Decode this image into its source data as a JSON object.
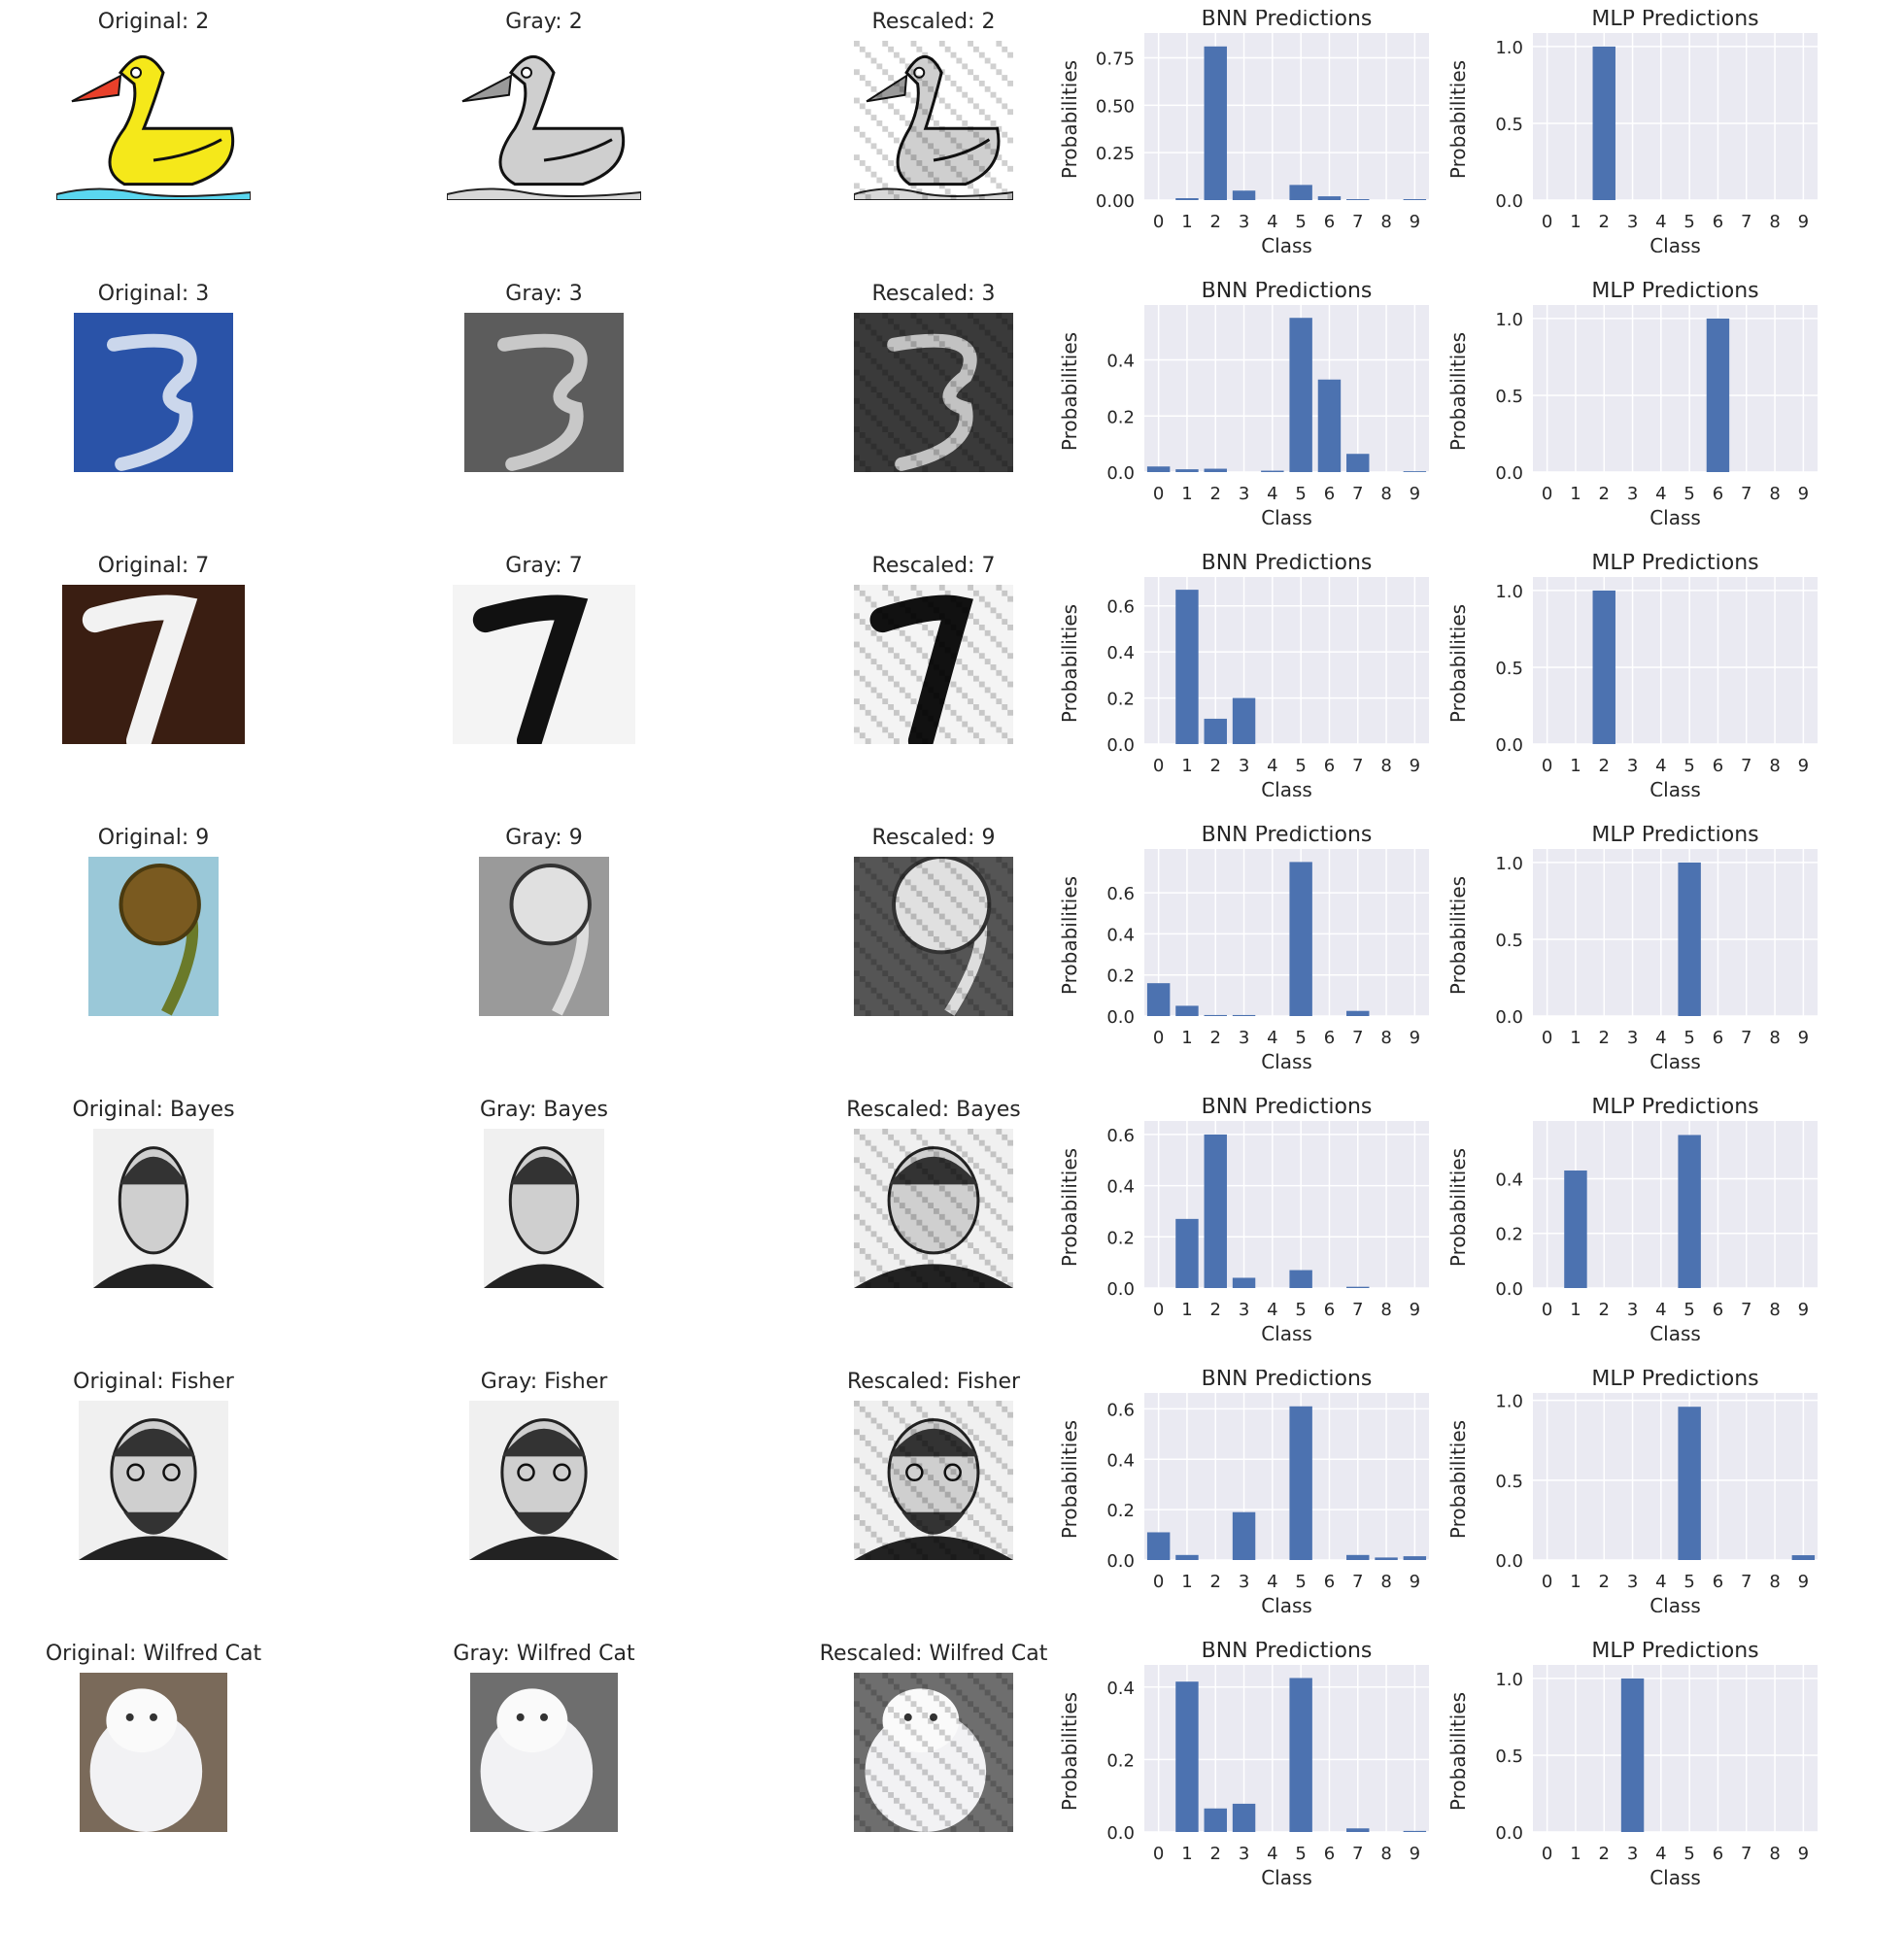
{
  "colors": {
    "bar": "#4c72b0",
    "axes_bg": "#eaeaf2",
    "grid": "#ffffff"
  },
  "labels": {
    "bnn_title": "BNN Predictions",
    "mlp_title": "MLP Predictions",
    "xlabel": "Class",
    "ylabel": "Probabilities"
  },
  "rows": [
    {
      "original": "Original: 2",
      "gray": "Gray: 2",
      "rescaled": "Rescaled: 2",
      "image": "yellow-duck-drawing"
    },
    {
      "original": "Original: 3",
      "gray": "Gray: 3",
      "rescaled": "Rescaled: 3",
      "image": "cloud-shaped-3"
    },
    {
      "original": "Original: 7",
      "gray": "Gray: 7",
      "rescaled": "Rescaled: 7",
      "image": "cow-fur-7"
    },
    {
      "original": "Original: 9",
      "gray": "Gray: 9",
      "rescaled": "Rescaled: 9",
      "image": "fern-fiddlehead"
    },
    {
      "original": "Original: Bayes",
      "gray": "Gray: Bayes",
      "rescaled": "Rescaled: Bayes",
      "image": "bayes-portrait"
    },
    {
      "original": "Original: Fisher",
      "gray": "Gray: Fisher",
      "rescaled": "Rescaled: Fisher",
      "image": "fisher-portrait"
    },
    {
      "original": "Original: Wilfred Cat",
      "gray": "Gray: Wilfred Cat",
      "rescaled": "Rescaled: Wilfred Cat",
      "image": "white-fluffy-cat"
    }
  ],
  "chart_data": [
    {
      "type": "bar",
      "title": "BNN Predictions",
      "xlabel": "Class",
      "ylabel": "Probabilities",
      "categories": [
        "0",
        "1",
        "2",
        "3",
        "4",
        "5",
        "6",
        "7",
        "8",
        "9"
      ],
      "values": [
        0.0,
        0.01,
        0.81,
        0.05,
        0.0,
        0.08,
        0.02,
        0.005,
        0.0,
        0.005
      ],
      "ylim": [
        0,
        0.85
      ],
      "yticks": [
        "0.00",
        "0.25",
        "0.50",
        "0.75"
      ],
      "ytick_values": [
        0,
        0.25,
        0.5,
        0.75
      ]
    },
    {
      "type": "bar",
      "title": "MLP Predictions",
      "xlabel": "Class",
      "ylabel": "Probabilities",
      "categories": [
        "0",
        "1",
        "2",
        "3",
        "4",
        "5",
        "6",
        "7",
        "8",
        "9"
      ],
      "values": [
        0,
        0,
        1.0,
        0,
        0,
        0,
        0,
        0,
        0,
        0
      ],
      "ylim": [
        0,
        1.05
      ],
      "yticks": [
        "0.0",
        "0.5",
        "1.0"
      ],
      "ytick_values": [
        0,
        0.5,
        1.0
      ]
    },
    {
      "type": "bar",
      "title": "BNN Predictions",
      "xlabel": "Class",
      "ylabel": "Probabilities",
      "categories": [
        "0",
        "1",
        "2",
        "3",
        "4",
        "5",
        "6",
        "7",
        "8",
        "9"
      ],
      "values": [
        0.02,
        0.01,
        0.012,
        0.0,
        0.005,
        0.55,
        0.33,
        0.065,
        0.0,
        0.003
      ],
      "ylim": [
        0,
        0.575
      ],
      "yticks": [
        "0.0",
        "0.2",
        "0.4"
      ],
      "ytick_values": [
        0,
        0.2,
        0.4
      ]
    },
    {
      "type": "bar",
      "title": "MLP Predictions",
      "xlabel": "Class",
      "ylabel": "Probabilities",
      "categories": [
        "0",
        "1",
        "2",
        "3",
        "4",
        "5",
        "6",
        "7",
        "8",
        "9"
      ],
      "values": [
        0,
        0,
        0,
        0,
        0,
        0,
        1.0,
        0,
        0,
        0
      ],
      "ylim": [
        0,
        1.05
      ],
      "yticks": [
        "0.0",
        "0.5",
        "1.0"
      ],
      "ytick_values": [
        0,
        0.5,
        1.0
      ]
    },
    {
      "type": "bar",
      "title": "BNN Predictions",
      "xlabel": "Class",
      "ylabel": "Probabilities",
      "categories": [
        "0",
        "1",
        "2",
        "3",
        "4",
        "5",
        "6",
        "7",
        "8",
        "9"
      ],
      "values": [
        0.0,
        0.67,
        0.11,
        0.2,
        0.0,
        0.0,
        0.0,
        0.0,
        0.0,
        0.0
      ],
      "ylim": [
        0,
        0.7
      ],
      "yticks": [
        "0.0",
        "0.2",
        "0.4",
        "0.6"
      ],
      "ytick_values": [
        0,
        0.2,
        0.4,
        0.6
      ]
    },
    {
      "type": "bar",
      "title": "MLP Predictions",
      "xlabel": "Class",
      "ylabel": "Probabilities",
      "categories": [
        "0",
        "1",
        "2",
        "3",
        "4",
        "5",
        "6",
        "7",
        "8",
        "9"
      ],
      "values": [
        0,
        0,
        1.0,
        0,
        0,
        0,
        0,
        0,
        0,
        0
      ],
      "ylim": [
        0,
        1.05
      ],
      "yticks": [
        "0.0",
        "0.5",
        "1.0"
      ],
      "ytick_values": [
        0,
        0.5,
        1.0
      ]
    },
    {
      "type": "bar",
      "title": "BNN Predictions",
      "xlabel": "Class",
      "ylabel": "Probabilities",
      "categories": [
        "0",
        "1",
        "2",
        "3",
        "4",
        "5",
        "6",
        "7",
        "8",
        "9"
      ],
      "values": [
        0.16,
        0.05,
        0.005,
        0.005,
        0.0,
        0.75,
        0.0,
        0.025,
        0.0,
        0.0
      ],
      "ylim": [
        0,
        0.785
      ],
      "yticks": [
        "0.0",
        "0.2",
        "0.4",
        "0.6"
      ],
      "ytick_values": [
        0,
        0.2,
        0.4,
        0.6
      ]
    },
    {
      "type": "bar",
      "title": "MLP Predictions",
      "xlabel": "Class",
      "ylabel": "Probabilities",
      "categories": [
        "0",
        "1",
        "2",
        "3",
        "4",
        "5",
        "6",
        "7",
        "8",
        "9"
      ],
      "values": [
        0,
        0,
        0,
        0,
        0,
        1.0,
        0,
        0,
        0,
        0
      ],
      "ylim": [
        0,
        1.05
      ],
      "yticks": [
        "0.0",
        "0.5",
        "1.0"
      ],
      "ytick_values": [
        0,
        0.5,
        1.0
      ]
    },
    {
      "type": "bar",
      "title": "BNN Predictions",
      "xlabel": "Class",
      "ylabel": "Probabilities",
      "categories": [
        "0",
        "1",
        "2",
        "3",
        "4",
        "5",
        "6",
        "7",
        "8",
        "9"
      ],
      "values": [
        0.0,
        0.27,
        0.6,
        0.04,
        0.0,
        0.07,
        0.0,
        0.005,
        0.0,
        0.0
      ],
      "ylim": [
        0,
        0.63
      ],
      "yticks": [
        "0.0",
        "0.2",
        "0.4",
        "0.6"
      ],
      "ytick_values": [
        0,
        0.2,
        0.4,
        0.6
      ]
    },
    {
      "type": "bar",
      "title": "MLP Predictions",
      "xlabel": "Class",
      "ylabel": "Probabilities",
      "categories": [
        "0",
        "1",
        "2",
        "3",
        "4",
        "5",
        "6",
        "7",
        "8",
        "9"
      ],
      "values": [
        0,
        0.43,
        0,
        0,
        0,
        0.56,
        0,
        0,
        0,
        0
      ],
      "ylim": [
        0,
        0.59
      ],
      "yticks": [
        "0.0",
        "0.2",
        "0.4"
      ],
      "ytick_values": [
        0,
        0.2,
        0.4
      ]
    },
    {
      "type": "bar",
      "title": "BNN Predictions",
      "xlabel": "Class",
      "ylabel": "Probabilities",
      "categories": [
        "0",
        "1",
        "2",
        "3",
        "4",
        "5",
        "6",
        "7",
        "8",
        "9"
      ],
      "values": [
        0.11,
        0.02,
        0.0,
        0.19,
        0.0,
        0.61,
        0.0,
        0.02,
        0.01,
        0.015
      ],
      "ylim": [
        0,
        0.64
      ],
      "yticks": [
        "0.0",
        "0.2",
        "0.4",
        "0.6"
      ],
      "ytick_values": [
        0,
        0.2,
        0.4,
        0.6
      ]
    },
    {
      "type": "bar",
      "title": "MLP Predictions",
      "xlabel": "Class",
      "ylabel": "Probabilities",
      "categories": [
        "0",
        "1",
        "2",
        "3",
        "4",
        "5",
        "6",
        "7",
        "8",
        "9"
      ],
      "values": [
        0,
        0,
        0,
        0,
        0,
        0.96,
        0,
        0,
        0,
        0.03
      ],
      "ylim": [
        0,
        1.01
      ],
      "yticks": [
        "0.0",
        "0.5",
        "1.0"
      ],
      "ytick_values": [
        0,
        0.5,
        1.0
      ]
    },
    {
      "type": "bar",
      "title": "BNN Predictions",
      "xlabel": "Class",
      "ylabel": "Probabilities",
      "categories": [
        "0",
        "1",
        "2",
        "3",
        "4",
        "5",
        "6",
        "7",
        "8",
        "9"
      ],
      "values": [
        0.0,
        0.415,
        0.065,
        0.078,
        0.0,
        0.425,
        0.0,
        0.01,
        0.0,
        0.003
      ],
      "ylim": [
        0,
        0.445
      ],
      "yticks": [
        "0.0",
        "0.2",
        "0.4"
      ],
      "ytick_values": [
        0,
        0.2,
        0.4
      ]
    },
    {
      "type": "bar",
      "title": "MLP Predictions",
      "xlabel": "Class",
      "ylabel": "Probabilities",
      "categories": [
        "0",
        "1",
        "2",
        "3",
        "4",
        "5",
        "6",
        "7",
        "8",
        "9"
      ],
      "values": [
        0,
        0,
        0,
        1.0,
        0,
        0,
        0,
        0,
        0,
        0
      ],
      "ylim": [
        0,
        1.05
      ],
      "yticks": [
        "0.0",
        "0.5",
        "1.0"
      ],
      "ytick_values": [
        0,
        0.5,
        1.0
      ]
    }
  ]
}
